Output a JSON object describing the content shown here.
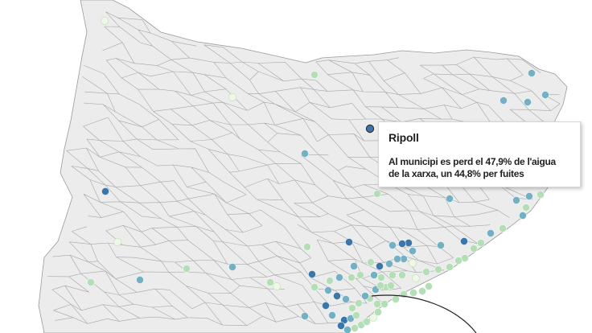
{
  "tooltip": {
    "title": "Ripoll",
    "line1": "Al municipi es perd el 47,9% de l'aigua",
    "line2": "de la xarxa, un 44,8% per fuites"
  },
  "colors": {
    "land": "#ececec",
    "border": "#9a9a9a",
    "dark_blue": "#3a76a9",
    "teal": "#73b0c4",
    "light_green": "#b4dfb6",
    "pale": "#eef8e6"
  },
  "map_markers": [
    "municipality markers colored by share of water lost in the network"
  ]
}
